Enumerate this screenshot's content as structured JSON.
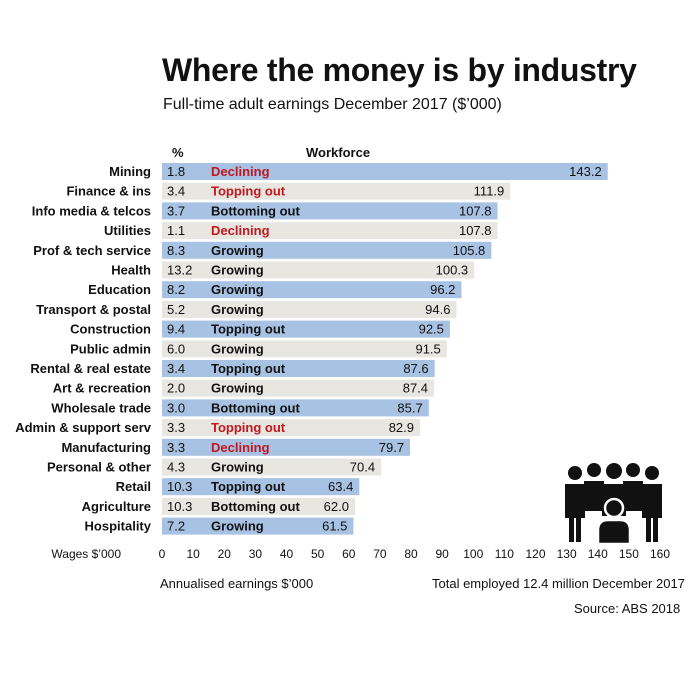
{
  "title": "Where the money is by industry",
  "subtitle": "Full-time adult earnings December 2017 ($’000)",
  "col_pct": "%",
  "col_workforce": "Workforce",
  "axis_label": "Wages $’000",
  "footer_left": "Annualised earnings $’000",
  "footer_right": "Total employed 12.4 million December 2017",
  "source": "Source: ABS 2018",
  "icon": "people-group-icon",
  "colors": {
    "bar_blue": "#a7c2e3",
    "bar_grey": "#e8e6e1",
    "declining": "#c3171e",
    "topping_out": "#c3171e",
    "text": "#111111"
  },
  "chart_data": {
    "type": "bar",
    "orientation": "horizontal",
    "title": "Where the money is by industry",
    "subtitle": "Full-time adult earnings December 2017 ($’000)",
    "xlabel": "Wages $’000",
    "xlim": [
      0,
      160
    ],
    "xticks": [
      0,
      10,
      20,
      30,
      40,
      50,
      60,
      70,
      80,
      90,
      100,
      110,
      120,
      130,
      140,
      150,
      160
    ],
    "categories": [
      "Mining",
      "Finance & ins",
      "Info media & telcos",
      "Utilities",
      "Prof & tech service",
      "Health",
      "Education",
      "Transport & postal",
      "Construction",
      "Public admin",
      "Rental & real estate",
      "Art & recreation",
      "Wholesale trade",
      "Admin & support serv",
      "Manufacturing",
      "Personal & other",
      "Retail",
      "Agriculture",
      "Hospitality"
    ],
    "values": [
      143.2,
      111.9,
      107.8,
      107.8,
      105.8,
      100.3,
      96.2,
      94.6,
      92.5,
      91.5,
      87.6,
      87.4,
      85.7,
      82.9,
      79.7,
      70.4,
      63.4,
      62.0,
      61.5
    ],
    "value_labels": [
      "143.2",
      "111.9",
      "107.8",
      "107.8",
      "105.8",
      "100.3",
      "96.2",
      "94.6",
      "92.5",
      "91.5",
      "87.6",
      "87.4",
      "85.7",
      "82.9",
      "79.7",
      "70.4",
      "63.4",
      "62.0",
      "61.5"
    ],
    "workforce_pct": [
      "1.8",
      "3.4",
      "3.7",
      "1.1",
      "8.3",
      "13.2",
      "8.2",
      "5.2",
      "9.4",
      "6.0",
      "3.4",
      "2.0",
      "3.0",
      "3.3",
      "3.3",
      "4.3",
      "10.3",
      "10.3",
      "7.2"
    ],
    "workforce_trend": [
      "Declining",
      "Topping out",
      "Bottoming out",
      "Declining",
      "Growing",
      "Growing",
      "Growing",
      "Growing",
      "Topping out",
      "Growing",
      "Topping out",
      "Growing",
      "Bottoming out",
      "Topping out",
      "Declining",
      "Growing",
      "Topping out",
      "Bottoming out",
      "Growing"
    ],
    "trend_highlight": [
      true,
      true,
      false,
      true,
      false,
      false,
      false,
      false,
      false,
      false,
      false,
      false,
      false,
      true,
      true,
      false,
      false,
      false,
      false
    ],
    "grid": false,
    "legend": "none"
  }
}
